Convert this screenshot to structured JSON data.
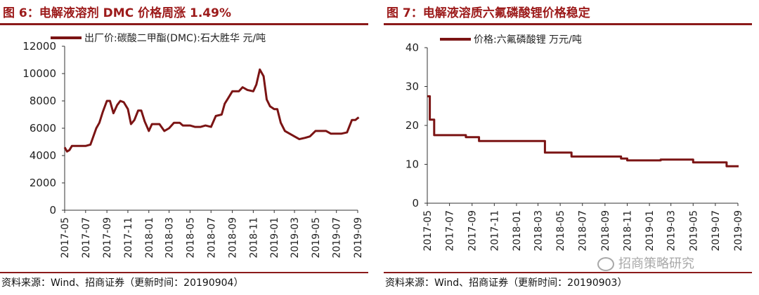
{
  "panels": [
    {
      "title": "图 6：电解液溶剂 DMC 价格周涨 1.49%",
      "source": "资料来源：Wind、招商证券（更新时间：20190904）"
    },
    {
      "title": "图 7：电解液溶质六氟磷酸锂价格稳定",
      "source": "资料来源：Wind、招商证券（更新时间：20190903）"
    }
  ],
  "watermark": "招商策略研究",
  "colors": {
    "accent": "#9c1a1a",
    "series": "#7b1414"
  },
  "chart_data": [
    {
      "type": "line",
      "title": "图 6：电解液溶剂 DMC 价格周涨 1.49%",
      "legend": "出厂价:碳酸二甲酯(DMC):石大胜华 元/吨",
      "legend_position": "top",
      "ylim": [
        0,
        12000
      ],
      "yticks": [
        0,
        2000,
        4000,
        6000,
        8000,
        10000,
        12000
      ],
      "xticks": [
        "2017-05",
        "2017-07",
        "2017-09",
        "2017-11",
        "2018-01",
        "2018-03",
        "2018-05",
        "2018-07",
        "2018-09",
        "2018-11",
        "2019-01",
        "2019-03",
        "2019-05",
        "2019-07",
        "2019-09"
      ],
      "grid": false,
      "series": [
        {
          "name": "出厂价:碳酸二甲酯(DMC):石大胜华 元/吨",
          "x": [
            "2017-05-01",
            "2017-05-08",
            "2017-05-15",
            "2017-05-22",
            "2017-06-01",
            "2017-06-15",
            "2017-07-01",
            "2017-07-15",
            "2017-08-01",
            "2017-08-10",
            "2017-08-20",
            "2017-09-01",
            "2017-09-10",
            "2017-09-20",
            "2017-10-01",
            "2017-10-10",
            "2017-10-20",
            "2017-11-01",
            "2017-11-10",
            "2017-11-20",
            "2017-12-01",
            "2017-12-10",
            "2017-12-20",
            "2018-01-01",
            "2018-01-10",
            "2018-01-20",
            "2018-02-01",
            "2018-02-15",
            "2018-03-01",
            "2018-03-15",
            "2018-04-01",
            "2018-04-10",
            "2018-04-20",
            "2018-05-01",
            "2018-05-15",
            "2018-06-01",
            "2018-06-15",
            "2018-07-01",
            "2018-07-15",
            "2018-08-01",
            "2018-08-10",
            "2018-08-20",
            "2018-09-01",
            "2018-09-10",
            "2018-09-20",
            "2018-10-01",
            "2018-10-15",
            "2018-11-01",
            "2018-11-10",
            "2018-11-20",
            "2018-12-01",
            "2018-12-10",
            "2018-12-20",
            "2019-01-01",
            "2019-01-10",
            "2019-01-20",
            "2019-02-01",
            "2019-02-15",
            "2019-03-01",
            "2019-03-15",
            "2019-04-01",
            "2019-04-15",
            "2019-05-01",
            "2019-05-15",
            "2019-06-01",
            "2019-06-15",
            "2019-07-01",
            "2019-07-15",
            "2019-08-01",
            "2019-08-15",
            "2019-08-25",
            "2019-09-04"
          ],
          "values": [
            4600,
            4300,
            4400,
            4700,
            4700,
            4700,
            4700,
            4800,
            6000,
            6400,
            7200,
            8000,
            8000,
            7100,
            7700,
            8000,
            7900,
            7400,
            6300,
            6600,
            7300,
            7300,
            6500,
            5800,
            6300,
            6300,
            6300,
            5800,
            6000,
            6400,
            6400,
            6200,
            6200,
            6200,
            6100,
            6100,
            6200,
            6100,
            6900,
            7000,
            7800,
            8200,
            8700,
            8700,
            8700,
            9000,
            8800,
            8700,
            9200,
            10300,
            9800,
            8100,
            7600,
            7400,
            7400,
            6400,
            5800,
            5600,
            5400,
            5200,
            5300,
            5400,
            5800,
            5800,
            5800,
            5600,
            5600,
            5600,
            5700,
            6600,
            6600,
            6800
          ]
        }
      ]
    },
    {
      "type": "line",
      "title": "图 7：电解液溶质六氟磷酸锂价格稳定",
      "legend": "价格:六氟磷酸锂 万元/吨",
      "legend_position": "top",
      "ylim": [
        0,
        40
      ],
      "yticks": [
        0,
        10,
        20,
        30,
        40
      ],
      "xticks": [
        "2017-05",
        "2017-07",
        "2017-09",
        "2017-11",
        "2018-01",
        "2018-03",
        "2018-05",
        "2018-07",
        "2018-09",
        "2018-11",
        "2019-01",
        "2019-03",
        "2019-05",
        "2019-07",
        "2019-09"
      ],
      "grid": false,
      "series": [
        {
          "name": "价格:六氟磷酸锂 万元/吨",
          "x": [
            "2017-05-01",
            "2017-05-08",
            "2017-05-20",
            "2017-06-01",
            "2017-07-01",
            "2017-08-15",
            "2017-09-10",
            "2017-09-20",
            "2017-10-15",
            "2018-03-01",
            "2018-03-20",
            "2018-04-10",
            "2018-06-01",
            "2018-09-15",
            "2018-10-15",
            "2018-11-01",
            "2018-12-01",
            "2019-02-01",
            "2019-04-01",
            "2019-04-20",
            "2019-05-01",
            "2019-07-15",
            "2019-08-01",
            "2019-09-03"
          ],
          "values": [
            27.5,
            21.5,
            17.5,
            17.5,
            17.5,
            17,
            17,
            16,
            16,
            16,
            13,
            13,
            12,
            12,
            11.5,
            11,
            11,
            11.2,
            11.2,
            11.2,
            10.5,
            10.5,
            9.5,
            9.5
          ]
        }
      ]
    }
  ]
}
